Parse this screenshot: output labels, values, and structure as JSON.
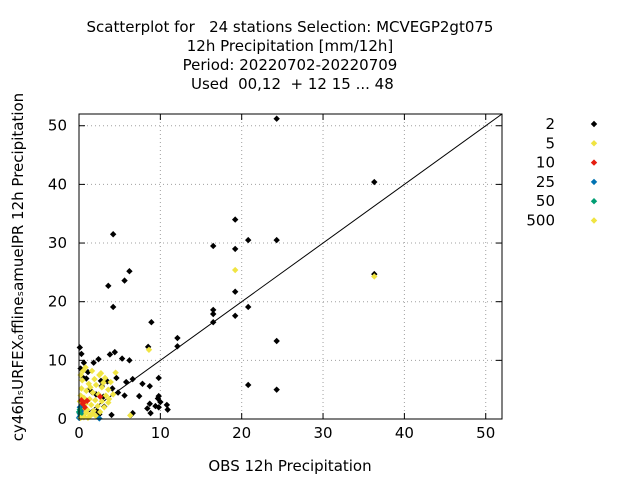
{
  "chart_data": {
    "type": "scatter",
    "title_lines": [
      "Scatterplot for   24 stations Selection: MCVEGP2gt075",
      "12h Precipitation [mm/12h]",
      "Period: 20220702-20220709",
      " Used  00,12  + 12 15 ... 48"
    ],
    "xlabel": "OBS 12h Precipitation",
    "ylabel": "cy46h_sURFEX_offline_samuelPR 12h Precipitation",
    "ylabel_display": "cy46hₛURFEXₒfflineₛamuelPR 12h Precipitation",
    "xlim": [
      0,
      52
    ],
    "ylim": [
      0,
      52
    ],
    "x_ticks": [
      "0",
      "10",
      "20",
      "30",
      "40",
      "50"
    ],
    "y_ticks": [
      "0",
      "10",
      "20",
      "30",
      "40",
      "50"
    ],
    "grid": true,
    "legend_position": "right",
    "diagonal_line": true,
    "legend": [
      {
        "label": "2",
        "color": "#000000"
      },
      {
        "label": "5",
        "color": "#f0e442"
      },
      {
        "label": "10",
        "color": "#e51e10"
      },
      {
        "label": "25",
        "color": "#0072b2"
      },
      {
        "label": "50",
        "color": "#009e73"
      },
      {
        "label": "500",
        "color": "#f0e442"
      }
    ],
    "series": [
      {
        "name": "2",
        "color": "#000000",
        "points": [
          [
            24.3,
            51.2
          ],
          [
            36.3,
            40.4
          ],
          [
            4.2,
            31.5
          ],
          [
            19.2,
            34.0
          ],
          [
            16.5,
            29.5
          ],
          [
            19.2,
            29.0
          ],
          [
            20.8,
            30.5
          ],
          [
            24.3,
            30.5
          ],
          [
            36.3,
            24.7
          ],
          [
            6.2,
            25.2
          ],
          [
            5.6,
            23.6
          ],
          [
            3.6,
            22.7
          ],
          [
            19.2,
            21.7
          ],
          [
            4.2,
            19.1
          ],
          [
            16.5,
            18.6
          ],
          [
            16.5,
            17.9
          ],
          [
            20.8,
            19.1
          ],
          [
            19.2,
            17.6
          ],
          [
            16.5,
            16.5
          ],
          [
            8.9,
            16.5
          ],
          [
            12.1,
            13.8
          ],
          [
            12.1,
            12.4
          ],
          [
            24.3,
            13.3
          ],
          [
            0.1,
            12.2
          ],
          [
            8.5,
            12.3
          ],
          [
            3.8,
            11.0
          ],
          [
            4.4,
            11.4
          ],
          [
            5.3,
            10.3
          ],
          [
            6.2,
            10.0
          ],
          [
            2.4,
            10.2
          ],
          [
            1.8,
            9.6
          ],
          [
            0.6,
            9.6
          ],
          [
            0.2,
            8.6
          ],
          [
            1.1,
            8.0
          ],
          [
            0.4,
            7.2
          ],
          [
            0.9,
            6.9
          ],
          [
            2.7,
            6.5
          ],
          [
            3.5,
            6.4
          ],
          [
            4.6,
            7.0
          ],
          [
            5.8,
            6.3
          ],
          [
            6.6,
            6.8
          ],
          [
            7.8,
            6.0
          ],
          [
            8.7,
            5.6
          ],
          [
            9.8,
            7.0
          ],
          [
            1.3,
            5.0
          ],
          [
            2.1,
            4.2
          ],
          [
            3.0,
            3.8
          ],
          [
            4.8,
            4.5
          ],
          [
            5.6,
            4.0
          ],
          [
            7.4,
            3.9
          ],
          [
            9.7,
            3.5
          ],
          [
            9.8,
            3.9
          ],
          [
            10.0,
            2.9
          ],
          [
            8.7,
            2.6
          ],
          [
            9.4,
            2.2
          ],
          [
            9.8,
            2.0
          ],
          [
            8.4,
            1.8
          ],
          [
            10.8,
            2.4
          ],
          [
            10.9,
            1.6
          ],
          [
            8.8,
            1.0
          ],
          [
            6.6,
            1.0
          ],
          [
            6.4,
            0.7
          ],
          [
            4.0,
            0.7
          ],
          [
            2.5,
            0.8
          ],
          [
            0.5,
            0.5
          ],
          [
            0.1,
            0.2
          ],
          [
            20.8,
            5.8
          ],
          [
            24.3,
            5.0
          ],
          [
            2.2,
            1.4
          ],
          [
            3.1,
            2.1
          ],
          [
            0.8,
            3.3
          ],
          [
            1.6,
            4.6
          ],
          [
            2.8,
            5.6
          ],
          [
            4.1,
            5.2
          ],
          [
            0.3,
            11.1
          ]
        ]
      },
      {
        "name": "5",
        "color": "#f0e442",
        "points": [
          [
            19.2,
            25.4
          ],
          [
            36.3,
            24.3
          ],
          [
            8.6,
            11.8
          ],
          [
            0.8,
            8.8
          ],
          [
            1.6,
            8.2
          ],
          [
            2.5,
            7.5
          ],
          [
            3.2,
            7.0
          ],
          [
            3.9,
            6.3
          ],
          [
            4.5,
            7.9
          ],
          [
            0.4,
            6.6
          ],
          [
            1.2,
            6.0
          ],
          [
            2.1,
            5.8
          ],
          [
            2.8,
            5.4
          ],
          [
            3.6,
            5.0
          ],
          [
            0.3,
            5.2
          ],
          [
            0.9,
            4.8
          ],
          [
            1.7,
            4.5
          ],
          [
            2.4,
            4.2
          ],
          [
            3.3,
            4.0
          ],
          [
            0.2,
            4.0
          ],
          [
            0.6,
            3.6
          ],
          [
            1.3,
            3.4
          ],
          [
            2.0,
            3.2
          ],
          [
            2.8,
            3.0
          ],
          [
            3.6,
            2.8
          ],
          [
            0.1,
            3.0
          ],
          [
            0.8,
            2.6
          ],
          [
            1.5,
            2.4
          ],
          [
            2.3,
            2.2
          ],
          [
            3.1,
            2.0
          ],
          [
            0.3,
            2.0
          ],
          [
            1.0,
            1.6
          ],
          [
            1.8,
            1.4
          ],
          [
            2.6,
            1.2
          ],
          [
            0.2,
            1.2
          ],
          [
            0.7,
            0.9
          ],
          [
            1.4,
            0.7
          ],
          [
            2.1,
            0.5
          ],
          [
            0.4,
            0.4
          ],
          [
            1.1,
            0.2
          ],
          [
            6.3,
            0.6
          ],
          [
            0.5,
            8.2
          ],
          [
            1.9,
            6.8
          ],
          [
            3.0,
            6.2
          ],
          [
            4.2,
            4.2
          ],
          [
            0.2,
            7.5
          ],
          [
            1.4,
            5.4
          ],
          [
            2.7,
            7.8
          ],
          [
            3.7,
            3.4
          ],
          [
            0.6,
            1.8
          ]
        ]
      },
      {
        "name": "10",
        "color": "#e51e10",
        "points": [
          [
            0.3,
            3.2
          ],
          [
            0.5,
            2.7
          ],
          [
            0.7,
            2.0
          ],
          [
            0.2,
            1.5
          ],
          [
            1.0,
            3.1
          ],
          [
            0.4,
            2.4
          ],
          [
            2.6,
            3.8
          ],
          [
            0.1,
            1.0
          ]
        ]
      },
      {
        "name": "25",
        "color": "#0072b2",
        "points": [
          [
            0.1,
            2.0
          ],
          [
            0.2,
            1.4
          ],
          [
            0.1,
            0.9
          ],
          [
            0.3,
            1.1
          ],
          [
            0.1,
            0.4
          ],
          [
            0.2,
            0.6
          ],
          [
            2.5,
            0.1
          ],
          [
            0.0,
            0.2
          ]
        ]
      },
      {
        "name": "50",
        "color": "#009e73",
        "points": [
          [
            0.1,
            1.6
          ],
          [
            0.2,
            0.8
          ],
          [
            0.0,
            1.2
          ]
        ]
      },
      {
        "name": "500",
        "color": "#f0e442",
        "points": [
          [
            0.2,
            0.2
          ],
          [
            0.6,
            0.3
          ],
          [
            1.3,
            0.4
          ],
          [
            0.9,
            1.1
          ],
          [
            1.7,
            0.9
          ]
        ]
      }
    ]
  }
}
